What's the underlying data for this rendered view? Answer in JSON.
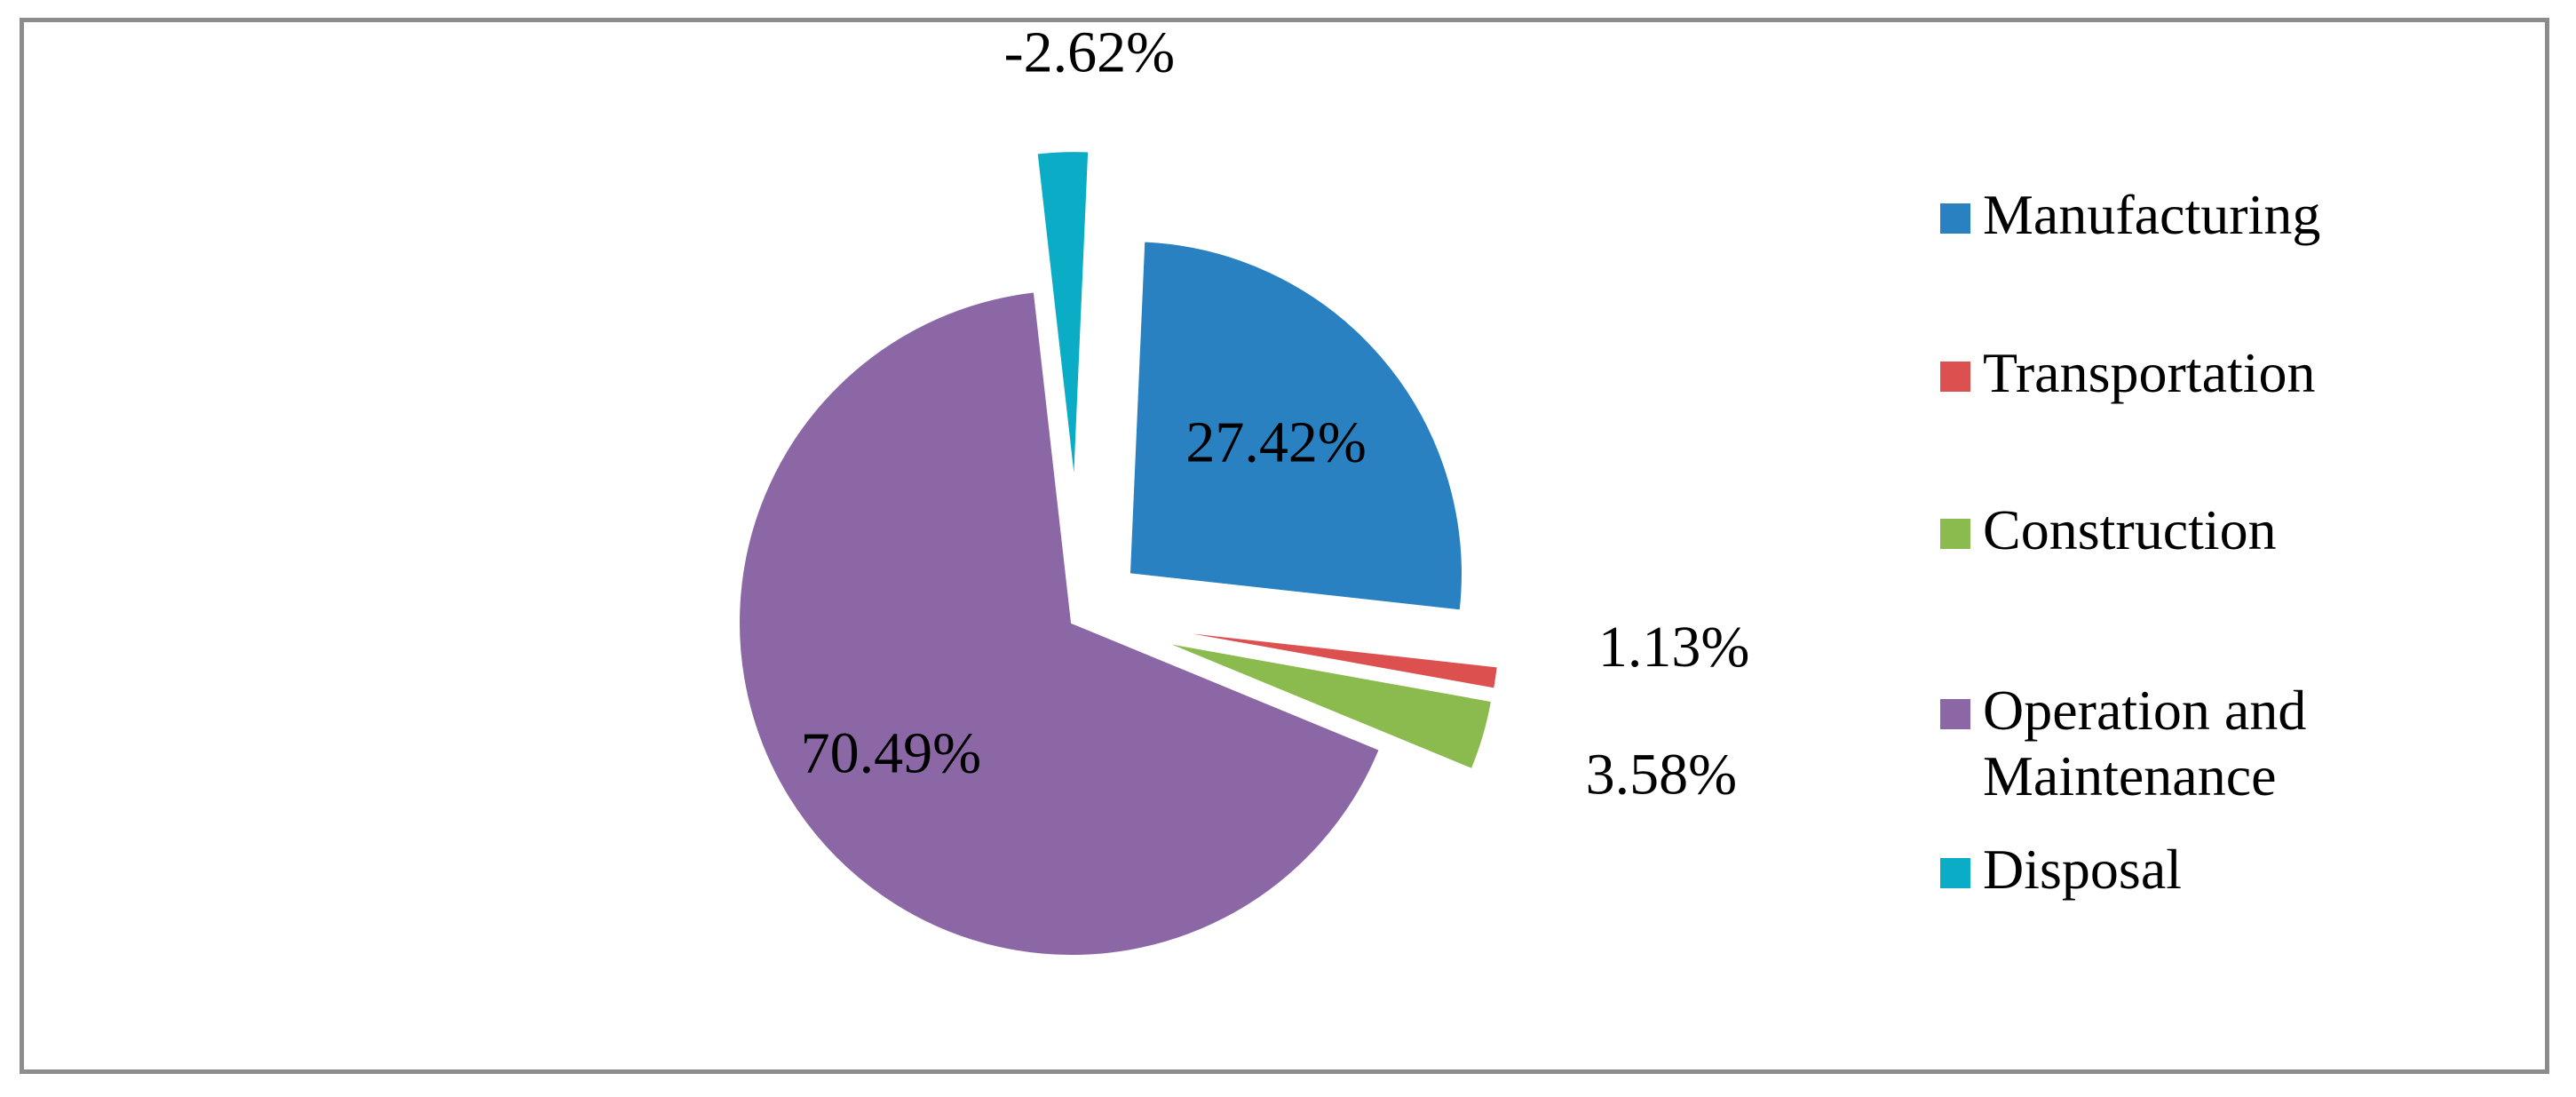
{
  "chart_data": {
    "type": "pie",
    "title": "",
    "legend_position": "right",
    "slices": [
      {
        "name": "Manufacturing",
        "value": 27.42,
        "label": "27.42%",
        "color": "#2981c2",
        "exploded": true
      },
      {
        "name": "Transportation",
        "value": 1.13,
        "label": "1.13%",
        "color": "#dc5050",
        "exploded": true
      },
      {
        "name": "Construction",
        "value": 3.58,
        "label": "3.58%",
        "color": "#8bbb4e",
        "exploded": true
      },
      {
        "name": "Operation and Maintenance",
        "value": 70.49,
        "label": "70.49%",
        "color": "#8b67a6",
        "exploded": true
      },
      {
        "name": "Disposal",
        "value": -2.62,
        "label": "-2.62%",
        "color": "#0bacc6",
        "exploded": true
      }
    ]
  },
  "legend": {
    "items": [
      {
        "label": "Manufacturing",
        "color": "#2981c2"
      },
      {
        "label": "Transportation",
        "color": "#dc5050"
      },
      {
        "label": "Construction",
        "color": "#8bbb4e"
      },
      {
        "label": "Operation and\nMaintenance",
        "color": "#8b67a6"
      },
      {
        "label": "Disposal",
        "color": "#0bacc6"
      }
    ]
  }
}
